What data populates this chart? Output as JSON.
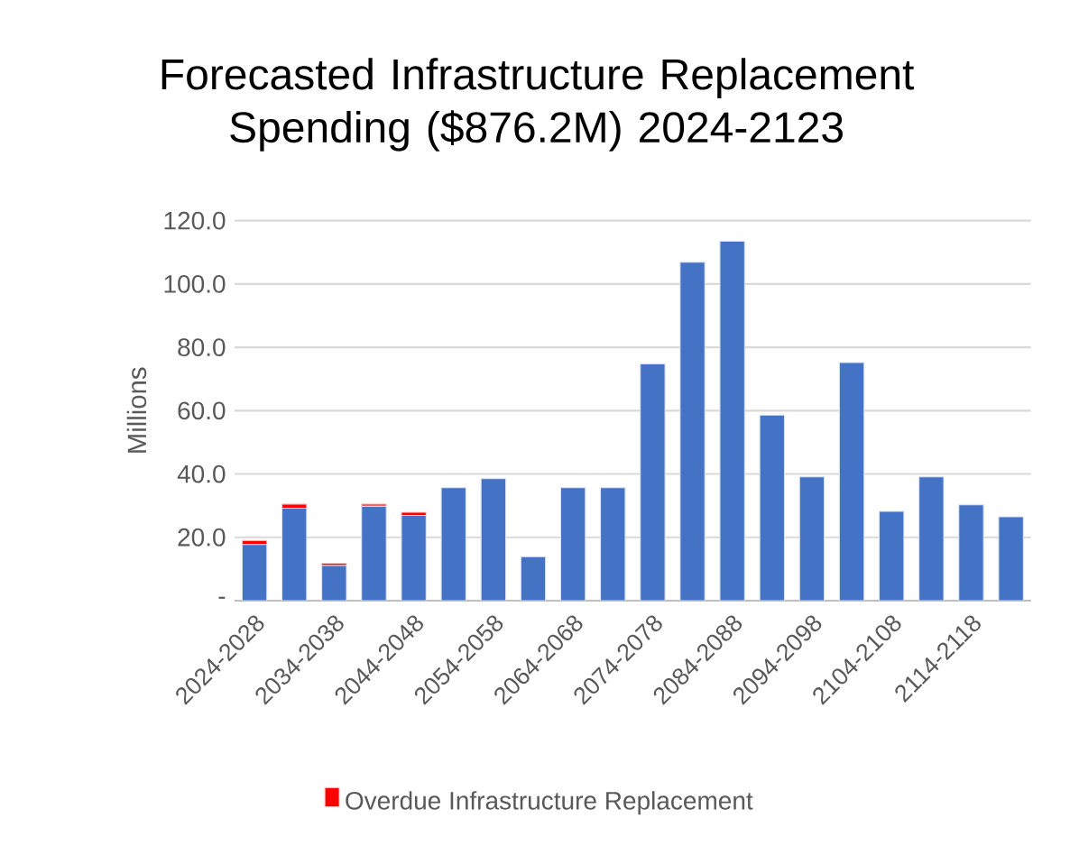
{
  "chart_data": {
    "type": "bar",
    "title": "Forecasted Infrastructure Replacement Spending ($876.2M) 2024-2123",
    "ylabel": "Millions",
    "categories": [
      "2024-2028",
      null,
      "2034-2038",
      null,
      "2044-2048",
      null,
      "2054-2058",
      null,
      "2064-2068",
      null,
      "2074-2078",
      null,
      "2084-2088",
      null,
      "2094-2098",
      null,
      "2104-2108",
      null,
      "2114-2118",
      null
    ],
    "stacked": true,
    "series": [
      {
        "color": "#4472c4",
        "values": [
          17.7,
          29.2,
          11.1,
          29.8,
          26.9,
          35.7,
          38.5,
          13.9,
          35.7,
          35.7,
          74.8,
          106.9,
          113.5,
          58.6,
          39.1,
          75.2,
          28.2,
          39.1,
          30.3,
          26.5
        ]
      },
      {
        "name": "Overdue Infrastructure Replacement",
        "color": "#ff0000",
        "values": [
          1.3,
          1.3,
          0.7,
          0.7,
          1.0,
          null,
          null,
          null,
          null,
          null,
          null,
          null,
          null,
          null,
          null,
          null,
          null,
          null,
          null,
          null
        ]
      }
    ],
    "ylim": [
      0,
      120
    ],
    "yticks": [
      {
        "value": 0,
        "label": "-"
      },
      {
        "value": 20,
        "label": "20.0"
      },
      {
        "value": 40,
        "label": "40.0"
      },
      {
        "value": 60,
        "label": "60.0"
      },
      {
        "value": 80,
        "label": "80.0"
      },
      {
        "value": 100,
        "label": "100.0"
      },
      {
        "value": 120,
        "label": "120.0"
      }
    ],
    "grid": "y",
    "legend": "bottom"
  }
}
